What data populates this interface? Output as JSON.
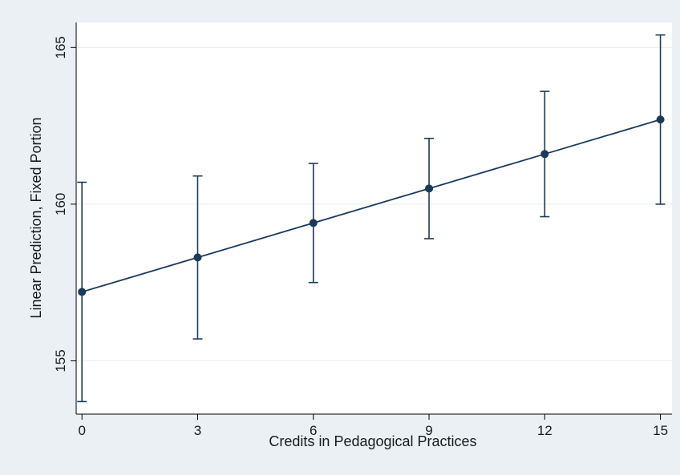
{
  "chart_data": {
    "type": "line",
    "title": "",
    "xlabel": "Credits in Pedagogical Practices",
    "ylabel": "Linear Prediction, Fixed Portion",
    "x_ticks": [
      0,
      3,
      6,
      9,
      12,
      15
    ],
    "y_ticks": [
      155,
      160,
      165
    ],
    "xlim": [
      -0.15,
      15.3
    ],
    "ylim": [
      153.3,
      165.8
    ],
    "grid": true,
    "legend": "none",
    "series": [
      {
        "x": [
          0,
          3,
          6,
          9,
          12,
          15
        ],
        "y": [
          157.2,
          158.3,
          159.4,
          160.5,
          161.6,
          162.7
        ],
        "ci_low": [
          153.7,
          155.7,
          157.5,
          158.9,
          159.6,
          160.0
        ],
        "ci_high": [
          160.7,
          160.9,
          161.3,
          162.1,
          163.6,
          165.4
        ]
      }
    ],
    "colors": {
      "line": "#1a3a5c",
      "marker": "#1a3a5c",
      "plot_background": "#ffffff",
      "page_background": "#eaf0f4",
      "grid": "#e6ecf0",
      "axis": "#000000"
    }
  }
}
